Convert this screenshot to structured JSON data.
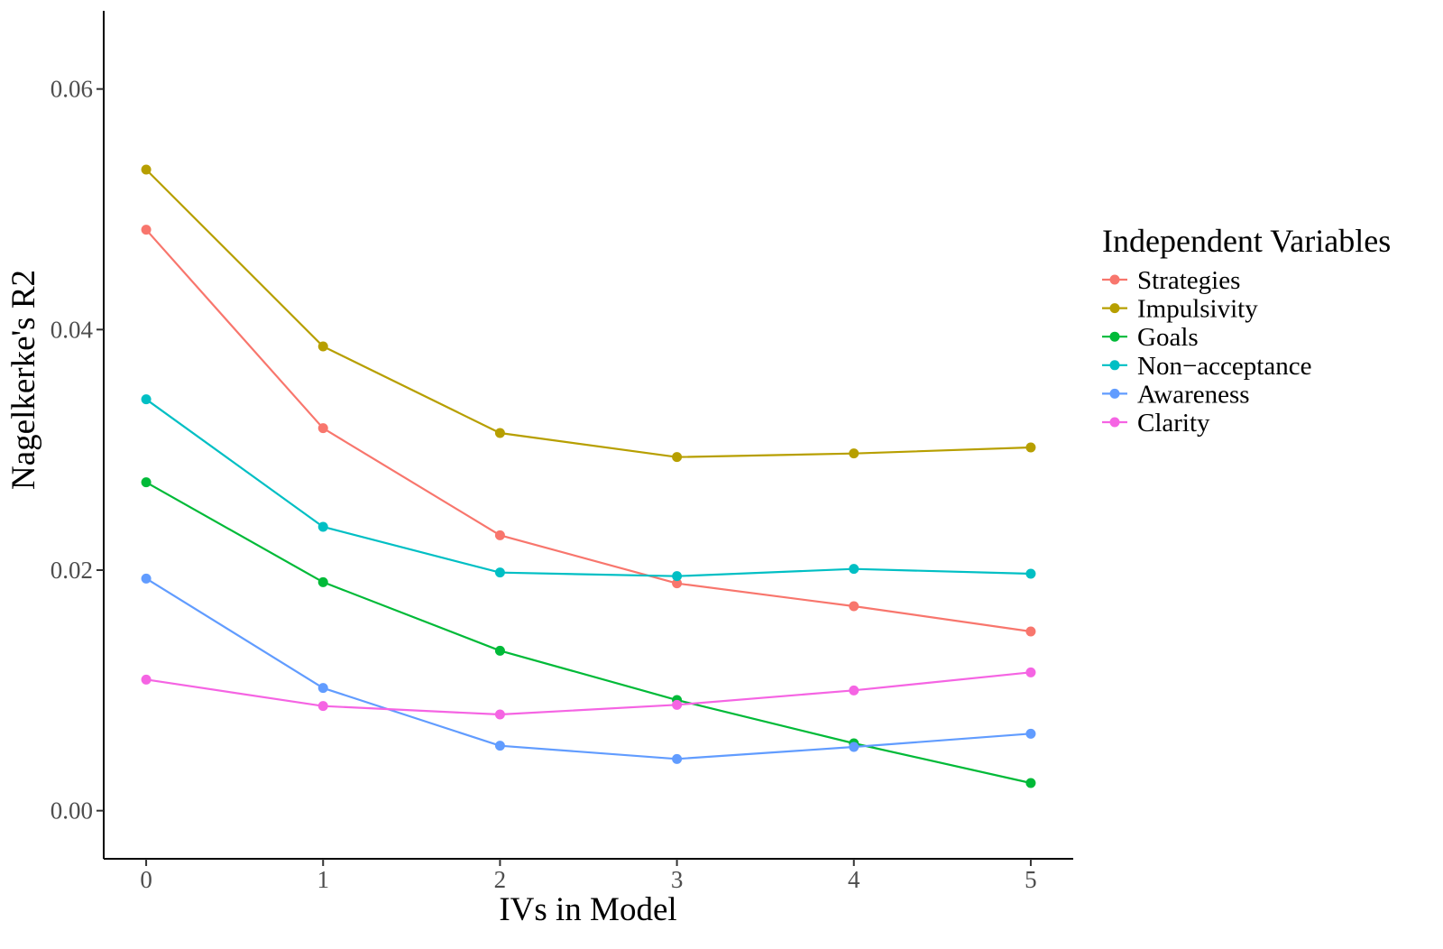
{
  "chart_data": {
    "type": "line",
    "title": "",
    "xlabel": "IVs in Model",
    "ylabel": "Nagelkerke's R2",
    "x": [
      0,
      1,
      2,
      3,
      4,
      5
    ],
    "x_ticks": [
      "0",
      "1",
      "2",
      "3",
      "4",
      "5"
    ],
    "y_ticks": [
      "0.00",
      "0.02",
      "0.04",
      "0.06"
    ],
    "y_tick_values": [
      0,
      0.02,
      0.04,
      0.06
    ],
    "xlim": [
      -0.24,
      5.24
    ],
    "ylim": [
      -0.004,
      0.0665
    ],
    "grid": false,
    "legend": {
      "title": "Independent Variables",
      "position": "right"
    },
    "series": [
      {
        "name": "Strategies",
        "color": "#F8766D",
        "values": [
          0.0483,
          0.0318,
          0.0229,
          0.0189,
          0.017,
          0.0149
        ]
      },
      {
        "name": "Impulsivity",
        "color": "#B79F00",
        "values": [
          0.0533,
          0.0386,
          0.0314,
          0.0294,
          0.0297,
          0.0302
        ]
      },
      {
        "name": "Goals",
        "color": "#00BA38",
        "values": [
          0.0273,
          0.019,
          0.0133,
          0.0092,
          0.0056,
          0.0023
        ]
      },
      {
        "name": "Non−acceptance",
        "color": "#00BFC4",
        "values": [
          0.0342,
          0.0236,
          0.0198,
          0.0195,
          0.0201,
          0.0197
        ]
      },
      {
        "name": "Awareness",
        "color": "#619CFF",
        "values": [
          0.0193,
          0.0102,
          0.0054,
          0.0043,
          0.0053,
          0.0064
        ]
      },
      {
        "name": "Clarity",
        "color": "#F564E3",
        "values": [
          0.0109,
          0.0087,
          0.008,
          0.0088,
          0.01,
          0.0115
        ]
      }
    ]
  }
}
